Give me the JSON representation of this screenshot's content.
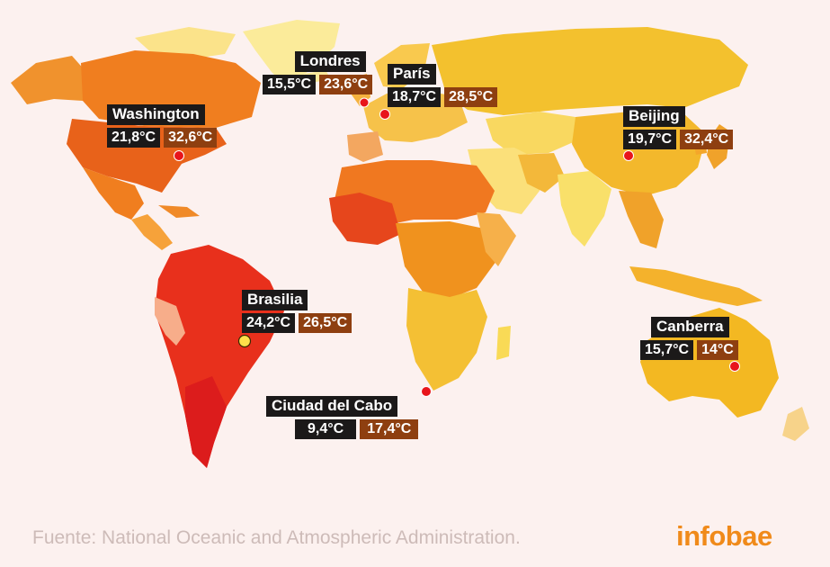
{
  "colors": {
    "background": "#fcf1ef",
    "label_bg": "#1b1919",
    "max_temp_bg": "#8e3f10",
    "marker": "#e8151b",
    "logo": "#f08a1a"
  },
  "cities": [
    {
      "id": "washington",
      "name": "Washington",
      "min": "21,8°C",
      "max": "32,6°C"
    },
    {
      "id": "londres",
      "name": "Londres",
      "min": "15,5°C",
      "max": "23,6°C"
    },
    {
      "id": "paris",
      "name": "París",
      "min": "18,7°C",
      "max": "28,5°C"
    },
    {
      "id": "beijing",
      "name": "Beijing",
      "min": "19,7°C",
      "max": "32,4°C"
    },
    {
      "id": "brasilia",
      "name": "Brasilia",
      "min": "24,2°C",
      "max": "26,5°C"
    },
    {
      "id": "ciudad-del-cabo",
      "name": "Ciudad del Cabo",
      "min": "9,4°C",
      "max": "17,4°C"
    },
    {
      "id": "canberra",
      "name": "Canberra",
      "min": "15,7°C",
      "max": "14°C"
    }
  ],
  "source": "Fuente: National Oceanic and Atmospheric Administration.",
  "logo": "infobae"
}
